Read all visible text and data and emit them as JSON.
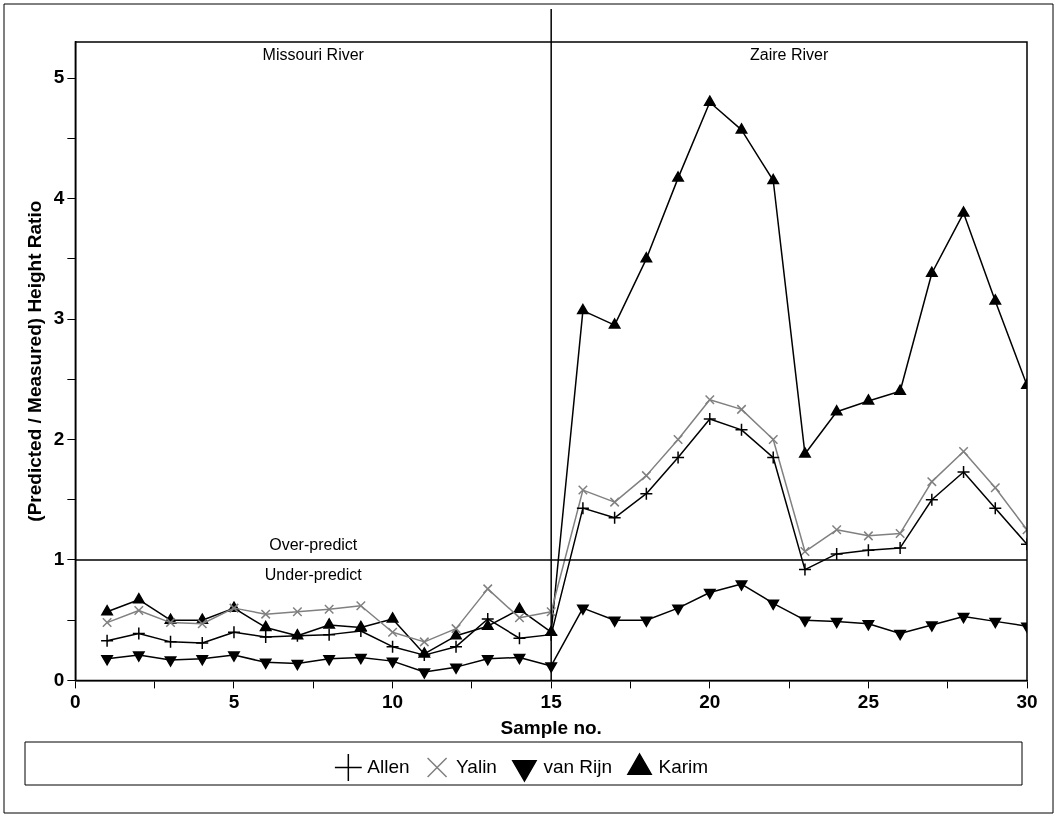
{
  "chart_data": {
    "type": "line",
    "xlabel": "Sample no.",
    "ylabel": "(Predicted / Measured) Height Ratio",
    "x": [
      1,
      2,
      3,
      4,
      5,
      6,
      7,
      8,
      9,
      10,
      11,
      12,
      13,
      14,
      15,
      16,
      17,
      18,
      19,
      20,
      21,
      22,
      23,
      24,
      25,
      26,
      27,
      28,
      29,
      30
    ],
    "series": [
      {
        "name": "Allen",
        "color": "#000000",
        "marker": "cross",
        "values": [
          0.33,
          0.39,
          0.32,
          0.31,
          0.4,
          0.36,
          0.37,
          0.38,
          0.41,
          0.28,
          0.21,
          0.28,
          0.51,
          0.35,
          0.38,
          1.43,
          1.35,
          1.55,
          1.85,
          2.17,
          2.08,
          1.85,
          0.92,
          1.05,
          1.08,
          1.1,
          1.5,
          1.73,
          1.43,
          1.13
        ]
      },
      {
        "name": "Yalin",
        "color": "#808080",
        "marker": "x",
        "values": [
          0.48,
          0.58,
          0.48,
          0.47,
          0.6,
          0.55,
          0.57,
          0.59,
          0.62,
          0.4,
          0.32,
          0.43,
          0.76,
          0.52,
          0.57,
          1.58,
          1.48,
          1.7,
          2.0,
          2.33,
          2.25,
          2.0,
          1.07,
          1.25,
          1.2,
          1.22,
          1.65,
          1.9,
          1.6,
          1.25
        ]
      },
      {
        "name": "van Rijn",
        "color": "#000000",
        "marker": "triangle-down",
        "values": [
          0.18,
          0.21,
          0.17,
          0.18,
          0.21,
          0.15,
          0.14,
          0.18,
          0.19,
          0.16,
          0.07,
          0.11,
          0.18,
          0.19,
          0.12,
          0.6,
          0.5,
          0.5,
          0.6,
          0.73,
          0.8,
          0.64,
          0.5,
          0.49,
          0.47,
          0.39,
          0.46,
          0.53,
          0.49,
          0.45
        ]
      },
      {
        "name": "Karim",
        "color": "#000000",
        "marker": "triangle",
        "values": [
          0.57,
          0.67,
          0.5,
          0.5,
          0.6,
          0.44,
          0.37,
          0.46,
          0.44,
          0.51,
          0.22,
          0.37,
          0.45,
          0.59,
          0.4,
          3.07,
          2.95,
          3.5,
          4.17,
          4.8,
          4.57,
          4.15,
          1.88,
          2.23,
          2.32,
          2.4,
          3.38,
          3.88,
          3.15,
          2.45
        ]
      }
    ],
    "xlim": [
      0,
      30
    ],
    "xticks": [
      0,
      {
        "value": 2.5,
        "label": null
      },
      5,
      {
        "value": 7.5,
        "label": null
      },
      10,
      {
        "value": 12.5,
        "label": null
      },
      15,
      {
        "value": 17.5,
        "label": null
      },
      20,
      {
        "value": 22.5,
        "label": null
      },
      25,
      {
        "value": 27.5,
        "label": null
      },
      30
    ],
    "ylim": [
      0,
      5.3
    ],
    "yticks": [
      0,
      {
        "value": 0.5,
        "label": null
      },
      1,
      {
        "value": 1.5,
        "label": null
      },
      2,
      {
        "value": 2.5,
        "label": null
      },
      3,
      {
        "value": 3.5,
        "label": null
      },
      4,
      {
        "value": 4.5,
        "label": null
      },
      5
    ],
    "ref_lines": [
      {
        "axis": "y",
        "value": 1,
        "color": "#000000"
      },
      {
        "axis": "x",
        "value": 15,
        "color": "#000000"
      }
    ],
    "annotations": [
      "Missouri River",
      "Zaire River",
      "Over-predict",
      "Under-predict"
    ],
    "grid": false,
    "legend": "bottom"
  }
}
